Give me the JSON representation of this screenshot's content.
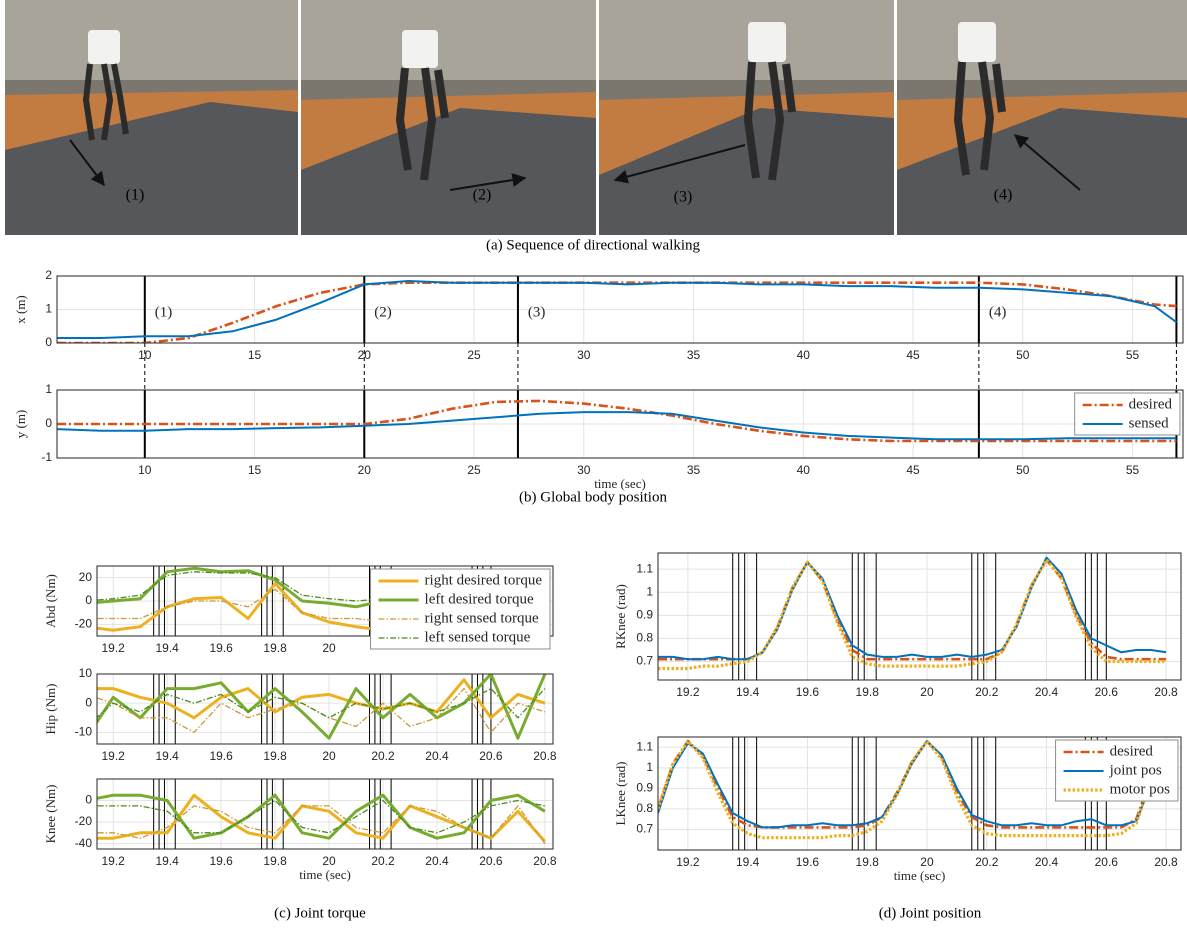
{
  "figure": {
    "photo_labels": [
      "(1)",
      "(2)",
      "(3)",
      "(4)"
    ],
    "captions": [
      "(a) Sequence of directional walking",
      "(b) Global body position",
      "(c) Joint torque",
      "(d) Joint position"
    ]
  },
  "chart_data": [
    {
      "type": "line",
      "ylabel": "x (m)",
      "x": [
        6,
        8,
        10,
        12,
        14,
        16,
        18,
        20,
        22,
        24,
        26,
        28,
        30,
        32,
        34,
        36,
        38,
        40,
        42,
        44,
        46,
        48,
        50,
        52,
        54,
        56,
        57
      ],
      "series": [
        {
          "color": "#d95319",
          "style": "dashdot-thick",
          "values": [
            0,
            0,
            0,
            0.15,
            0.6,
            1.1,
            1.5,
            1.75,
            1.8,
            1.8,
            1.8,
            1.8,
            1.8,
            1.8,
            1.8,
            1.8,
            1.8,
            1.8,
            1.8,
            1.8,
            1.8,
            1.8,
            1.75,
            1.6,
            1.4,
            1.15,
            1.1
          ]
        },
        {
          "color": "#0072bd",
          "style": "solid",
          "values": [
            0.15,
            0.15,
            0.2,
            0.2,
            0.35,
            0.7,
            1.2,
            1.75,
            1.85,
            1.8,
            1.8,
            1.8,
            1.8,
            1.75,
            1.8,
            1.8,
            1.75,
            1.75,
            1.7,
            1.7,
            1.65,
            1.65,
            1.6,
            1.5,
            1.4,
            1.1,
            0.62
          ]
        }
      ],
      "xlim": [
        6,
        57.3
      ],
      "ylim": [
        0,
        2
      ],
      "xticks": [
        10,
        15,
        20,
        25,
        30,
        35,
        40,
        45,
        50,
        55
      ],
      "yticks": [
        0,
        1,
        2
      ],
      "grid": true,
      "events": [
        10,
        20,
        27,
        48,
        57
      ],
      "annotations": [
        {
          "text": "(1)",
          "x": 10
        },
        {
          "text": "(2)",
          "x": 20
        },
        {
          "text": "(3)",
          "x": 27
        },
        {
          "text": "(4)",
          "x": 48
        }
      ]
    },
    {
      "type": "line",
      "ylabel": "y (m)",
      "xlabel": "time (sec)",
      "x": [
        6,
        8,
        10,
        12,
        14,
        16,
        18,
        20,
        22,
        24,
        26,
        28,
        30,
        32,
        34,
        36,
        38,
        40,
        42,
        44,
        46,
        48,
        50,
        52,
        54,
        56,
        57
      ],
      "series": [
        {
          "name": "desired",
          "color": "#d95319",
          "style": "dashdot-thick",
          "values": [
            0,
            0,
            0,
            0,
            0,
            0,
            0,
            0,
            0.15,
            0.45,
            0.65,
            0.68,
            0.6,
            0.45,
            0.25,
            0,
            -0.2,
            -0.35,
            -0.45,
            -0.5,
            -0.5,
            -0.5,
            -0.5,
            -0.5,
            -0.5,
            -0.5,
            -0.5
          ]
        },
        {
          "name": "sensed",
          "color": "#0072bd",
          "style": "solid",
          "values": [
            -0.15,
            -0.2,
            -0.2,
            -0.15,
            -0.15,
            -0.12,
            -0.1,
            -0.05,
            0,
            0.1,
            0.2,
            0.3,
            0.35,
            0.35,
            0.3,
            0.1,
            -0.1,
            -0.25,
            -0.35,
            -0.4,
            -0.45,
            -0.45,
            -0.45,
            -0.42,
            -0.42,
            -0.42,
            -0.42
          ]
        }
      ],
      "xlim": [
        6,
        57.3
      ],
      "ylim": [
        -1,
        1
      ],
      "xticks": [
        10,
        15,
        20,
        25,
        30,
        35,
        40,
        45,
        50,
        55
      ],
      "yticks": [
        -1,
        0,
        1
      ],
      "grid": true,
      "events": [
        10,
        20,
        27,
        48,
        57
      ],
      "legend": "upper right"
    },
    {
      "type": "line",
      "ylabel": "Abd (Nm)",
      "x": [
        19.1,
        19.2,
        19.3,
        19.4,
        19.5,
        19.6,
        19.7,
        19.8,
        19.9,
        20,
        20.1,
        20.2,
        20.3,
        20.4,
        20.5,
        20.6,
        20.7,
        20.8
      ],
      "series": [
        {
          "name": "right desired torque",
          "color": "#edb120",
          "style": "solid-thick",
          "values": [
            -22,
            -25,
            -22,
            -5,
            2,
            3,
            -15,
            15,
            -10,
            -18,
            -22,
            -25,
            -20,
            -18,
            -15,
            -10,
            -20,
            -25
          ]
        },
        {
          "name": "left desired torque",
          "color": "#77ac30",
          "style": "solid-thick",
          "values": [
            -2,
            0,
            2,
            25,
            28,
            25,
            26,
            18,
            0,
            -2,
            -5,
            0,
            5,
            10,
            15,
            20,
            5,
            -2
          ]
        },
        {
          "name": "right sensed torque",
          "color": "#c99a38",
          "style": "dashdot-thin",
          "values": [
            -15,
            -15,
            -15,
            -5,
            0,
            0,
            -5,
            10,
            -10,
            -15,
            -15,
            -18,
            -18,
            -15,
            -12,
            -10,
            -15,
            -18
          ]
        },
        {
          "name": "left sensed torque",
          "color": "#4d8a1f",
          "style": "dashdot-thin",
          "values": [
            0,
            2,
            5,
            22,
            25,
            24,
            24,
            20,
            5,
            2,
            0,
            2,
            5,
            8,
            12,
            18,
            8,
            0
          ]
        }
      ],
      "xlim": [
        19.14,
        20.83
      ],
      "ylim": [
        -30,
        30
      ],
      "xticks": [
        19.2,
        19.4,
        19.6,
        19.8,
        20
      ],
      "yticks": [
        -20,
        0,
        20
      ],
      "grid": true,
      "events": [
        19.35,
        19.37,
        19.39,
        19.43,
        19.75,
        19.77,
        19.79,
        19.83,
        20.15,
        20.17,
        20.19,
        20.23,
        20.53,
        20.55,
        20.57,
        20.6
      ],
      "legend": "upper right"
    },
    {
      "type": "line",
      "ylabel": "Hip (Nm)",
      "x": [
        19.1,
        19.2,
        19.3,
        19.4,
        19.5,
        19.6,
        19.7,
        19.8,
        19.9,
        20,
        20.1,
        20.2,
        20.3,
        20.4,
        20.5,
        20.6,
        20.7,
        20.8
      ],
      "series": [
        {
          "color": "#edb120",
          "style": "solid-thick",
          "values": [
            5,
            5,
            2,
            0,
            -5,
            2,
            5,
            -3,
            2,
            3,
            0,
            -2,
            0,
            -3,
            8,
            -5,
            3,
            0
          ]
        },
        {
          "color": "#77ac30",
          "style": "solid-thick",
          "values": [
            -12,
            2,
            -5,
            5,
            5,
            7,
            -3,
            5,
            -3,
            -12,
            5,
            -5,
            3,
            -5,
            0,
            10,
            -12,
            10
          ]
        },
        {
          "color": "#c99a38",
          "style": "dashdot-thin",
          "values": [
            3,
            0,
            -5,
            -5,
            -10,
            0,
            -5,
            -2,
            0,
            -5,
            -8,
            0,
            -8,
            -5,
            5,
            -10,
            0,
            -3
          ]
        },
        {
          "color": "#4d8a1f",
          "style": "dashdot-thin",
          "values": [
            -8,
            0,
            -3,
            3,
            0,
            3,
            -3,
            2,
            0,
            -5,
            0,
            -2,
            0,
            -3,
            0,
            5,
            -5,
            5
          ]
        }
      ],
      "xlim": [
        19.14,
        20.83
      ],
      "ylim": [
        -14,
        10
      ],
      "xticks": [
        19.2,
        19.4,
        19.6,
        19.8,
        20,
        20.2,
        20.4,
        20.6,
        20.8
      ],
      "yticks": [
        -10,
        0,
        10
      ],
      "grid": true,
      "events": [
        19.35,
        19.37,
        19.39,
        19.43,
        19.75,
        19.77,
        19.79,
        19.83,
        20.15,
        20.17,
        20.19,
        20.23,
        20.53,
        20.55,
        20.57,
        20.6
      ]
    },
    {
      "type": "line",
      "ylabel": "Knee (Nm)",
      "xlabel": "time (sec)",
      "x": [
        19.1,
        19.2,
        19.3,
        19.4,
        19.5,
        19.6,
        19.7,
        19.8,
        19.9,
        20,
        20.1,
        20.2,
        20.3,
        20.4,
        20.5,
        20.6,
        20.7,
        20.8
      ],
      "series": [
        {
          "color": "#edb120",
          "style": "solid-thick",
          "values": [
            -35,
            -35,
            -30,
            -30,
            5,
            -15,
            -30,
            -35,
            -5,
            -10,
            -30,
            -35,
            -5,
            -15,
            -25,
            -35,
            -10,
            -38
          ]
        },
        {
          "color": "#77ac30",
          "style": "solid-thick",
          "values": [
            0,
            5,
            5,
            0,
            -35,
            -30,
            -15,
            5,
            -30,
            -35,
            -10,
            5,
            -25,
            -35,
            -30,
            0,
            5,
            -10
          ]
        },
        {
          "color": "#c99a38",
          "style": "dashdot-thin",
          "values": [
            -30,
            -30,
            -35,
            -25,
            -5,
            -10,
            -25,
            -30,
            -5,
            -5,
            -25,
            -30,
            -5,
            -10,
            -25,
            -35,
            -5,
            -40
          ]
        },
        {
          "color": "#4d8a1f",
          "style": "dashdot-thin",
          "values": [
            -5,
            -5,
            -5,
            -10,
            -30,
            -30,
            -15,
            0,
            -25,
            -30,
            -15,
            0,
            -25,
            -30,
            -20,
            -5,
            0,
            -5
          ]
        }
      ],
      "xlim": [
        19.14,
        20.83
      ],
      "ylim": [
        -45,
        20
      ],
      "xticks": [
        19.2,
        19.4,
        19.6,
        19.8,
        20,
        20.2,
        20.4,
        20.6,
        20.8
      ],
      "yticks": [
        -40,
        -20,
        0
      ],
      "grid": true,
      "events": [
        19.35,
        19.37,
        19.39,
        19.43,
        19.75,
        19.77,
        19.79,
        19.83,
        20.15,
        20.17,
        20.19,
        20.23,
        20.53,
        20.55,
        20.57,
        20.6
      ]
    },
    {
      "type": "line",
      "ylabel": "RKnee (rad)",
      "x": [
        19.1,
        19.15,
        19.2,
        19.25,
        19.3,
        19.35,
        19.4,
        19.45,
        19.5,
        19.55,
        19.6,
        19.65,
        19.7,
        19.75,
        19.8,
        19.85,
        19.9,
        19.95,
        20,
        20.05,
        20.1,
        20.15,
        20.2,
        20.25,
        20.3,
        20.35,
        20.4,
        20.45,
        20.5,
        20.55,
        20.6,
        20.65,
        20.7,
        20.75,
        20.8
      ],
      "series": [
        {
          "color": "#d95319",
          "style": "dashdot-thick",
          "values": [
            0.71,
            0.71,
            0.71,
            0.71,
            0.71,
            0.71,
            0.71,
            0.74,
            0.85,
            1.02,
            1.13,
            1.05,
            0.88,
            0.75,
            0.71,
            0.71,
            0.71,
            0.71,
            0.71,
            0.71,
            0.71,
            0.71,
            0.71,
            0.74,
            0.86,
            1.03,
            1.14,
            1.06,
            0.9,
            0.78,
            0.72,
            0.71,
            0.71,
            0.71,
            0.71
          ]
        },
        {
          "color": "#0072bd",
          "style": "solid",
          "values": [
            0.72,
            0.72,
            0.71,
            0.71,
            0.72,
            0.71,
            0.71,
            0.74,
            0.84,
            1.01,
            1.13,
            1.06,
            0.9,
            0.77,
            0.73,
            0.72,
            0.72,
            0.73,
            0.72,
            0.72,
            0.73,
            0.72,
            0.73,
            0.75,
            0.85,
            1.02,
            1.15,
            1.08,
            0.92,
            0.8,
            0.77,
            0.74,
            0.75,
            0.75,
            0.74
          ]
        },
        {
          "color": "#edb120",
          "style": "dotted-thick",
          "values": [
            0.67,
            0.67,
            0.67,
            0.68,
            0.68,
            0.69,
            0.7,
            0.74,
            0.85,
            1.02,
            1.13,
            1.05,
            0.87,
            0.72,
            0.69,
            0.68,
            0.68,
            0.68,
            0.68,
            0.68,
            0.68,
            0.69,
            0.7,
            0.74,
            0.86,
            1.03,
            1.14,
            1.06,
            0.89,
            0.76,
            0.7,
            0.7,
            0.7,
            0.7,
            0.7
          ]
        }
      ],
      "xlim": [
        19.1,
        20.85
      ],
      "ylim": [
        0.62,
        1.17
      ],
      "xticks": [
        19.2,
        19.4,
        19.6,
        19.8,
        20,
        20.2,
        20.4,
        20.6,
        20.8
      ],
      "yticks": [
        0.7,
        0.8,
        0.9,
        1,
        1.1
      ],
      "grid": true,
      "events": [
        19.35,
        19.37,
        19.39,
        19.43,
        19.75,
        19.77,
        19.79,
        19.83,
        20.15,
        20.17,
        20.19,
        20.23,
        20.53,
        20.55,
        20.57,
        20.6
      ]
    },
    {
      "type": "line",
      "ylabel": "LKnee (rad)",
      "xlabel": "time (sec)",
      "x": [
        19.1,
        19.15,
        19.2,
        19.25,
        19.3,
        19.35,
        19.4,
        19.45,
        19.5,
        19.55,
        19.6,
        19.65,
        19.7,
        19.75,
        19.8,
        19.85,
        19.9,
        19.95,
        20,
        20.05,
        20.1,
        20.15,
        20.2,
        20.25,
        20.3,
        20.35,
        20.4,
        20.45,
        20.5,
        20.55,
        20.6,
        20.65,
        20.7,
        20.75,
        20.8
      ],
      "series": [
        {
          "name": "desired",
          "color": "#d95319",
          "style": "dashdot-thick",
          "values": [
            0.8,
            1.02,
            1.13,
            1.06,
            0.9,
            0.76,
            0.72,
            0.71,
            0.71,
            0.71,
            0.71,
            0.71,
            0.71,
            0.71,
            0.72,
            0.76,
            0.88,
            1.03,
            1.13,
            1.05,
            0.88,
            0.76,
            0.72,
            0.71,
            0.71,
            0.71,
            0.71,
            0.71,
            0.71,
            0.71,
            0.71,
            0.71,
            0.75,
            0.95,
            1.13
          ]
        },
        {
          "name": "joint pos",
          "color": "#0072bd",
          "style": "solid",
          "values": [
            0.78,
            1.0,
            1.12,
            1.07,
            0.92,
            0.78,
            0.74,
            0.71,
            0.71,
            0.72,
            0.72,
            0.73,
            0.72,
            0.72,
            0.73,
            0.76,
            0.87,
            1.02,
            1.13,
            1.06,
            0.9,
            0.77,
            0.74,
            0.72,
            0.72,
            0.73,
            0.72,
            0.72,
            0.74,
            0.75,
            0.72,
            0.72,
            0.74,
            0.92,
            1.11
          ]
        },
        {
          "name": "motor pos",
          "color": "#edb120",
          "style": "dotted-thick",
          "values": [
            0.8,
            1.02,
            1.13,
            1.05,
            0.88,
            0.73,
            0.68,
            0.66,
            0.66,
            0.66,
            0.66,
            0.66,
            0.67,
            0.67,
            0.69,
            0.74,
            0.87,
            1.03,
            1.13,
            1.04,
            0.86,
            0.72,
            0.68,
            0.67,
            0.67,
            0.67,
            0.67,
            0.67,
            0.67,
            0.67,
            0.67,
            0.68,
            0.73,
            0.94,
            1.13
          ]
        }
      ],
      "xlim": [
        19.1,
        20.85
      ],
      "ylim": [
        0.6,
        1.15
      ],
      "xticks": [
        19.2,
        19.4,
        19.6,
        19.8,
        20,
        20.2,
        20.4,
        20.6,
        20.8
      ],
      "yticks": [
        0.7,
        0.8,
        0.9,
        1,
        1.1
      ],
      "grid": true,
      "events": [
        19.35,
        19.37,
        19.39,
        19.43,
        19.75,
        19.77,
        19.79,
        19.83,
        20.15,
        20.17,
        20.19,
        20.23,
        20.53,
        20.55,
        20.57,
        20.6
      ],
      "legend": "upper right"
    }
  ]
}
